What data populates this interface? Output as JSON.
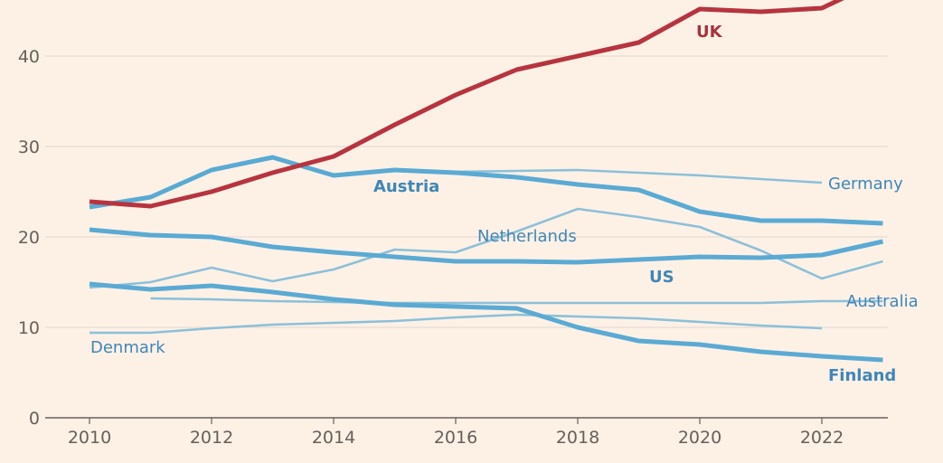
{
  "chart_data": {
    "type": "line",
    "title": "",
    "xlabel": "",
    "ylabel": "",
    "xlim": [
      2010,
      2023
    ],
    "ylim": [
      0,
      46
    ],
    "grid": true,
    "x_ticks": [
      "2010",
      "2012",
      "2014",
      "2016",
      "2018",
      "2020",
      "2022"
    ],
    "y_ticks": [
      "0",
      "10",
      "20",
      "30",
      "40"
    ],
    "colors": {
      "uk": "#B7343F",
      "highlight": "#5AAAD3",
      "secondary": "#8CC0D9",
      "label": "#3F86B8",
      "uk_label": "#A8323C",
      "grid": "#E6DDD3",
      "axis": "#66605a"
    },
    "series": [
      {
        "name": "UK",
        "style": "thick-red",
        "x": [
          2010,
          2011,
          2012,
          2013,
          2014,
          2015,
          2016,
          2017,
          2018,
          2019,
          2020,
          2021,
          2022,
          2023
        ],
        "values": [
          23.9,
          23.4,
          25.0,
          27.1,
          28.9,
          32.4,
          35.7,
          38.5,
          40.0,
          41.5,
          45.2,
          44.9,
          45.3,
          48.5
        ]
      },
      {
        "name": "Austria",
        "style": "thick-blue",
        "x": [
          2010,
          2011,
          2012,
          2013,
          2014,
          2015,
          2016,
          2017,
          2018,
          2019,
          2020,
          2021,
          2022,
          2023
        ],
        "values": [
          23.3,
          24.4,
          27.4,
          28.8,
          26.8,
          27.4,
          27.1,
          26.6,
          25.8,
          25.2,
          22.8,
          21.8,
          21.8,
          21.5
        ]
      },
      {
        "name": "Germany",
        "style": "thin-blue",
        "x": [
          2015,
          2016,
          2017,
          2018,
          2019,
          2020,
          2021,
          2022
        ],
        "values": [
          27.3,
          27.2,
          27.3,
          27.4,
          27.1,
          26.8,
          26.4,
          26.0
        ]
      },
      {
        "name": "Netherlands",
        "style": "thin-blue",
        "x": [
          2010,
          2011,
          2012,
          2013,
          2014,
          2015,
          2016,
          2017,
          2018,
          2019,
          2020,
          2021,
          2022,
          2023
        ],
        "values": [
          14.4,
          15.0,
          16.6,
          15.1,
          16.4,
          18.6,
          18.3,
          20.6,
          23.1,
          22.2,
          21.1,
          18.5,
          15.4,
          17.3
        ]
      },
      {
        "name": "US",
        "style": "thick-blue",
        "x": [
          2010,
          2011,
          2012,
          2013,
          2014,
          2015,
          2016,
          2017,
          2018,
          2019,
          2020,
          2021,
          2022,
          2023
        ],
        "values": [
          20.8,
          20.2,
          20.0,
          18.9,
          18.3,
          17.8,
          17.3,
          17.3,
          17.2,
          17.5,
          17.8,
          17.7,
          18.0,
          19.5
        ]
      },
      {
        "name": "Australia",
        "style": "thin-blue",
        "x": [
          2011,
          2012,
          2013,
          2014,
          2015,
          2016,
          2017,
          2018,
          2019,
          2020,
          2021,
          2022,
          2023
        ],
        "values": [
          13.2,
          13.1,
          12.9,
          12.8,
          12.7,
          12.7,
          12.7,
          12.7,
          12.7,
          12.7,
          12.7,
          12.9,
          12.9
        ]
      },
      {
        "name": "Finland",
        "style": "thick-blue",
        "x": [
          2010,
          2011,
          2012,
          2013,
          2014,
          2015,
          2016,
          2017,
          2018,
          2019,
          2020,
          2021,
          2022,
          2023
        ],
        "values": [
          14.8,
          14.2,
          14.6,
          13.9,
          13.1,
          12.5,
          12.3,
          12.1,
          10.0,
          8.5,
          8.1,
          7.3,
          6.8,
          6.4
        ]
      },
      {
        "name": "Denmark",
        "style": "thin-blue",
        "x": [
          2010,
          2011,
          2012,
          2013,
          2014,
          2015,
          2016,
          2017,
          2018,
          2019,
          2020,
          2021,
          2022
        ],
        "values": [
          9.4,
          9.4,
          9.9,
          10.3,
          10.5,
          10.7,
          11.1,
          11.4,
          11.2,
          11.0,
          10.6,
          10.2,
          9.9
        ]
      }
    ],
    "labels": {
      "uk": "UK",
      "austria": "Austria",
      "germany": "Germany",
      "netherlands": "Netherlands",
      "us": "US",
      "australia": "Australia",
      "finland": "Finland",
      "denmark": "Denmark"
    }
  }
}
